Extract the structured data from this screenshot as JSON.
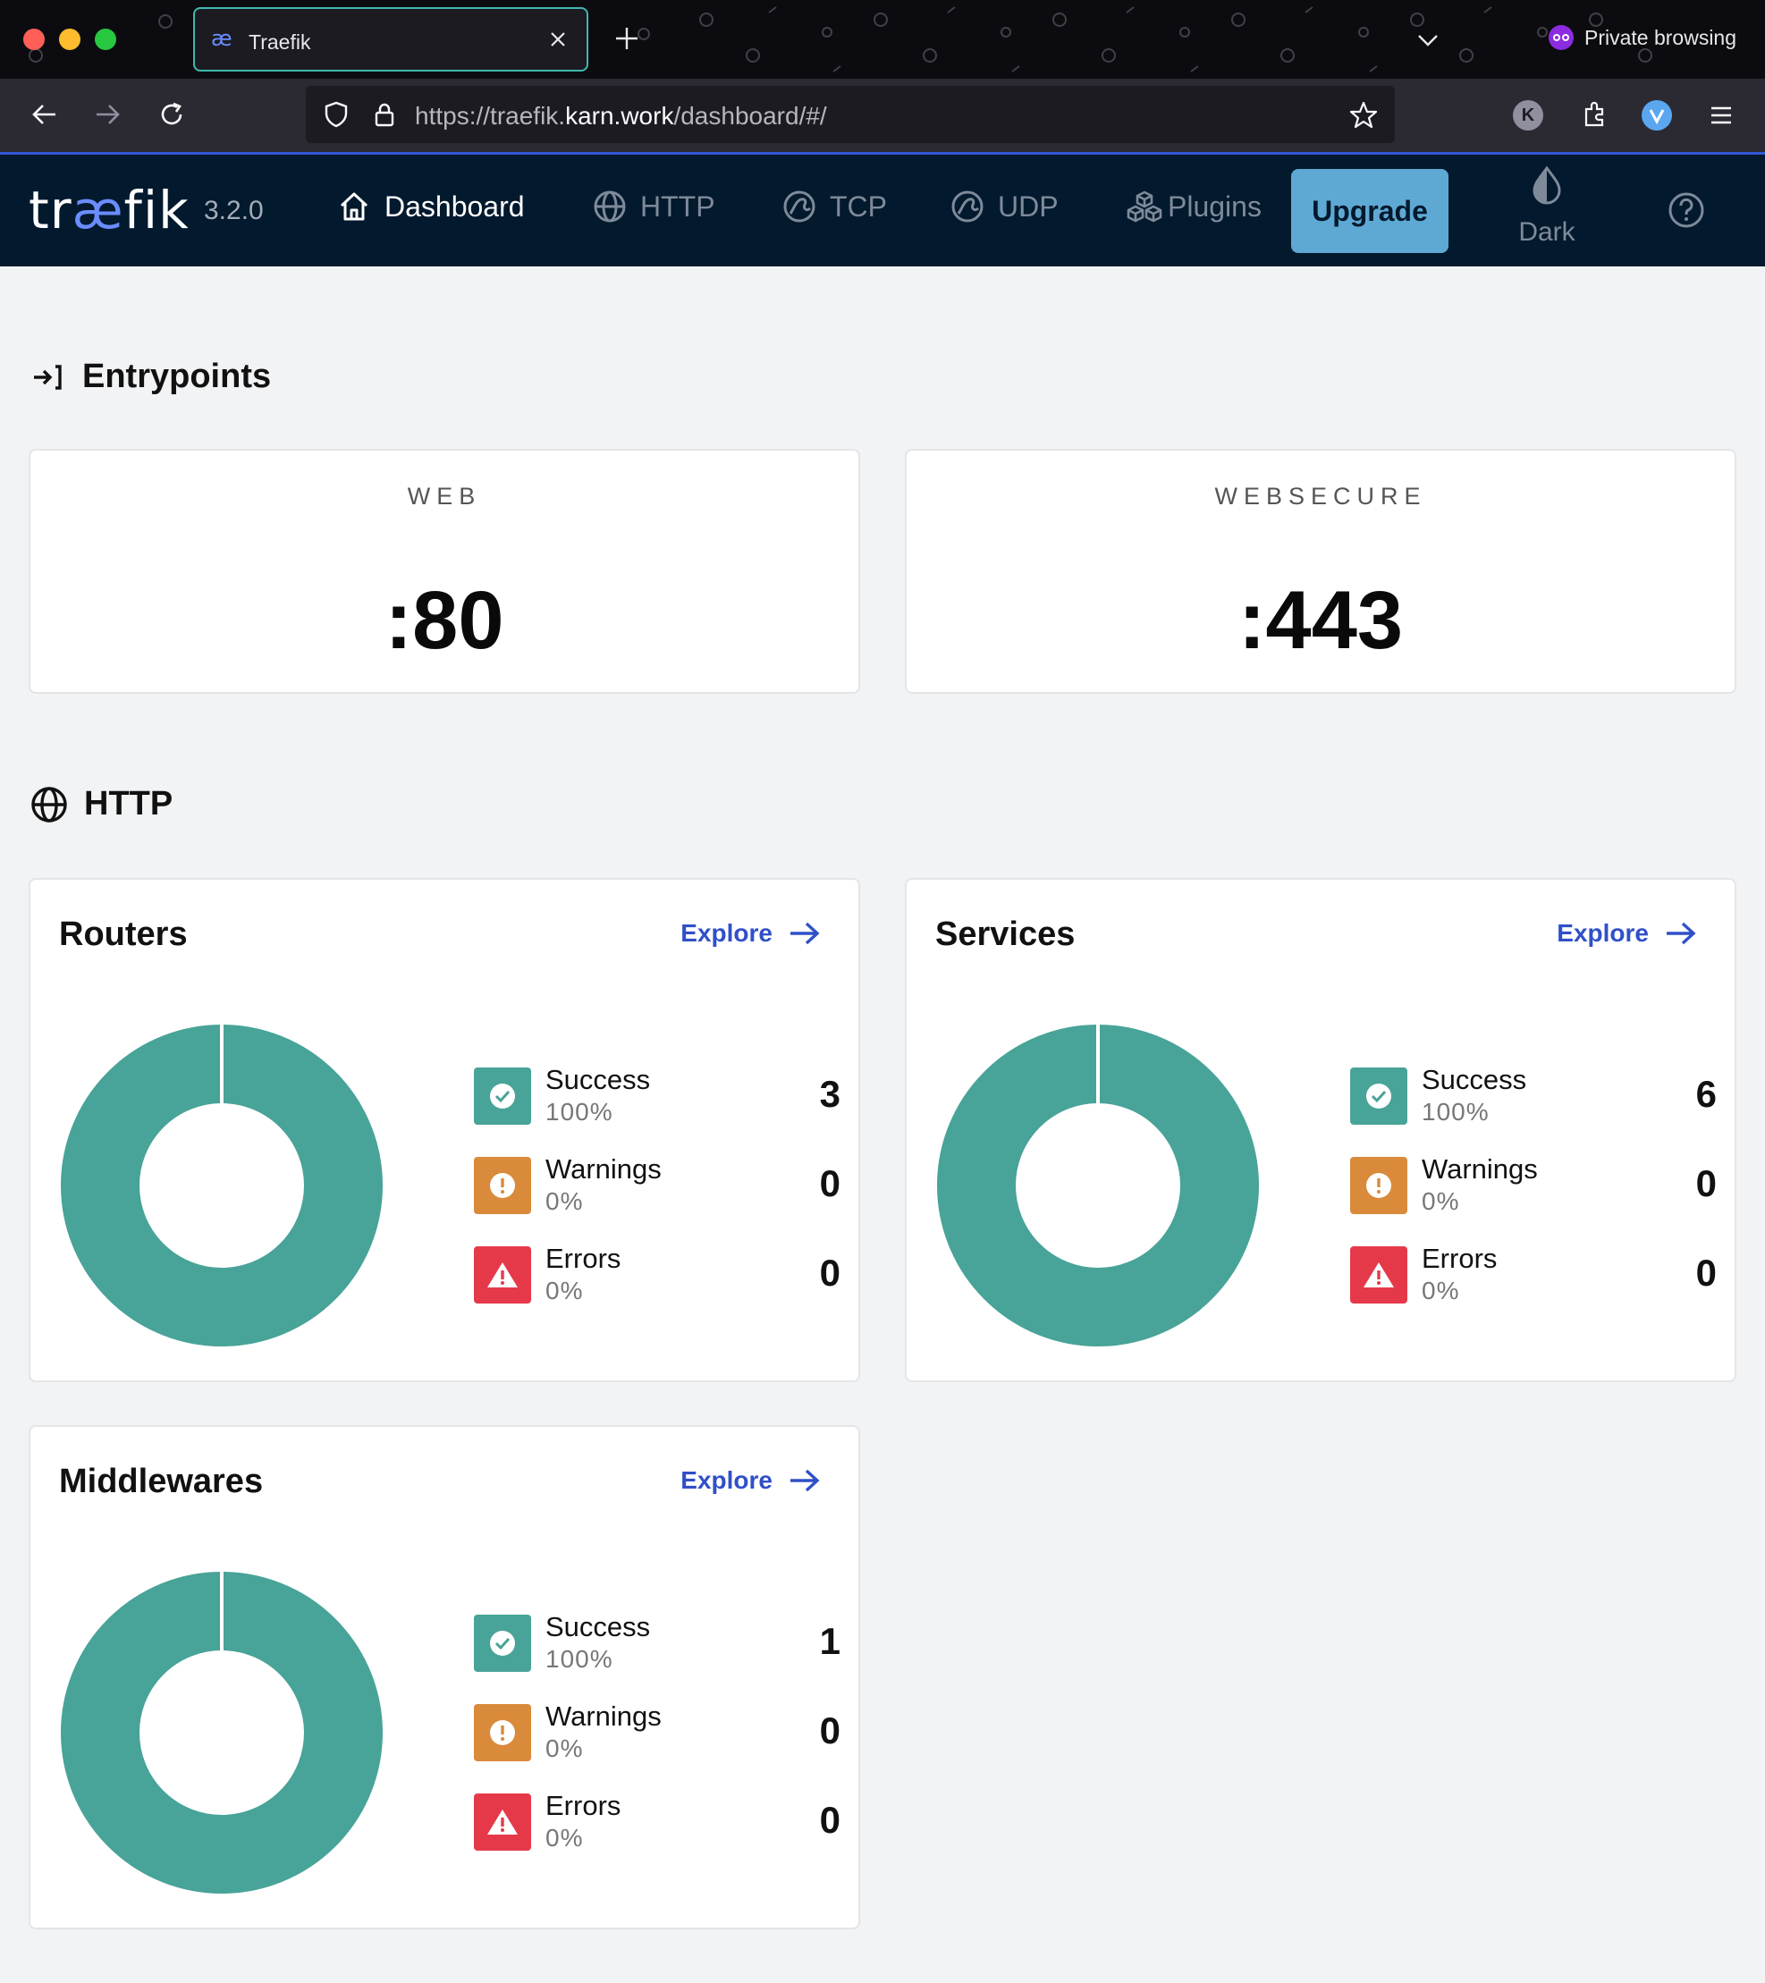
{
  "browser": {
    "tab_title": "Traefik",
    "url_prefix": "https://traefik.",
    "url_host": "karn.work",
    "url_path": "/dashboard/#/",
    "private_label": "Private browsing",
    "account_initial": "K"
  },
  "header": {
    "logo_prefix": "tr",
    "logo_ae": "æ",
    "logo_suffix": "fik",
    "version": "3.2.0",
    "nav": [
      {
        "label": "Dashboard",
        "icon": "home-icon"
      },
      {
        "label": "HTTP",
        "icon": "globe-icon"
      },
      {
        "label": "TCP",
        "icon": "tcp-icon"
      },
      {
        "label": "UDP",
        "icon": "udp-icon"
      },
      {
        "label": "Plugins",
        "icon": "plugins-icon"
      }
    ],
    "upgrade_label": "Upgrade",
    "theme_label": "Dark"
  },
  "entrypoints": {
    "title": "Entrypoints",
    "items": [
      {
        "name": "WEB",
        "port": ":80"
      },
      {
        "name": "WEBSECURE",
        "port": ":443"
      }
    ]
  },
  "http": {
    "title": "HTTP",
    "explore_label": "Explore",
    "stat_labels": {
      "success": "Success",
      "warnings": "Warnings",
      "errors": "Errors"
    },
    "routers": {
      "title": "Routers",
      "success_pct": "100%",
      "warnings_pct": "0%",
      "errors_pct": "0%",
      "success": "3",
      "warnings": "0",
      "errors": "0"
    },
    "services": {
      "title": "Services",
      "success_pct": "100%",
      "warnings_pct": "0%",
      "errors_pct": "0%",
      "success": "6",
      "warnings": "0",
      "errors": "0"
    },
    "middlewares": {
      "title": "Middlewares",
      "success_pct": "100%",
      "warnings_pct": "0%",
      "errors_pct": "0%",
      "success": "1",
      "warnings": "0",
      "errors": "0"
    }
  },
  "colors": {
    "success": "#48a398",
    "warning": "#d98a3a",
    "error": "#e5394a",
    "header_bg": "#03192d",
    "accent": "#3050c8"
  }
}
